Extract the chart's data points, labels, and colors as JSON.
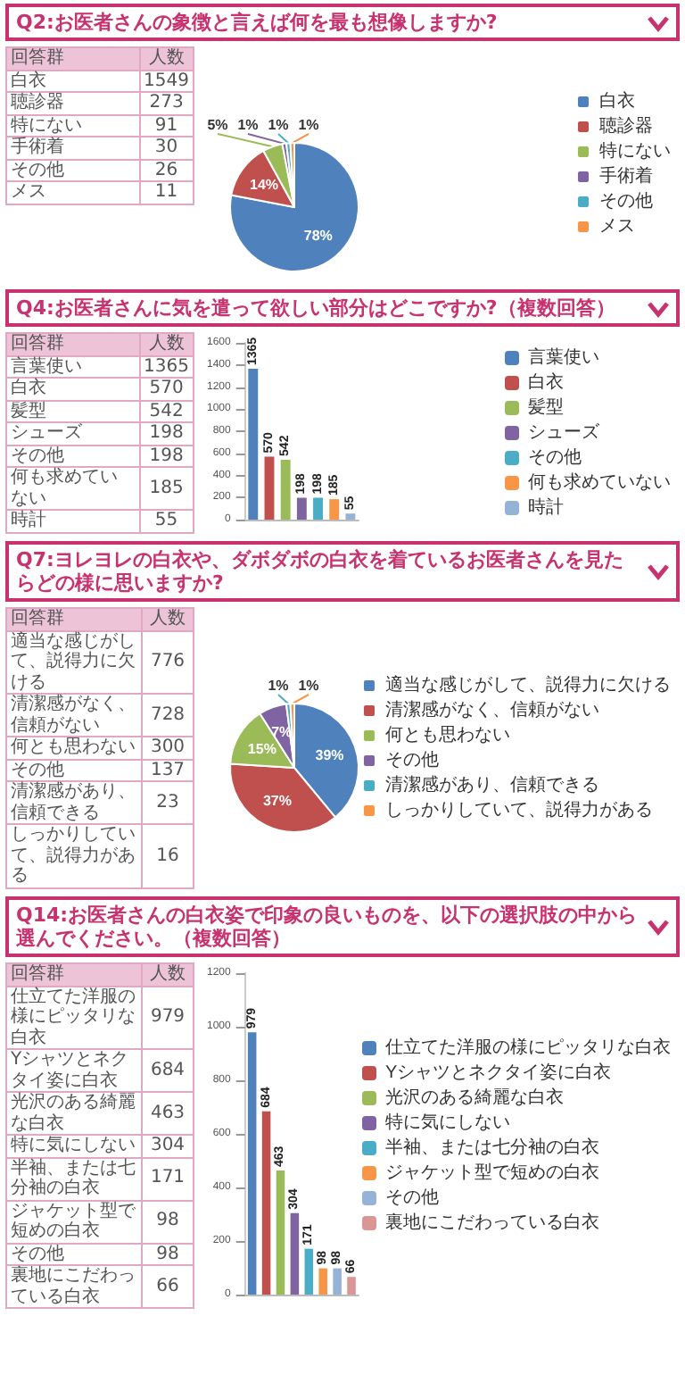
{
  "chart_data": [
    {
      "type": "other",
      "title": "Q2:お医者さんの象徴と言えば何を最も想像しますか?",
      "annotations": [
        "回答群",
        "人数"
      ],
      "categories": [
        "白衣",
        "聴診器",
        "特にない",
        "手術着",
        "その他",
        "メス"
      ],
      "values": [
        1549,
        273,
        91,
        30,
        26,
        11
      ],
      "data_labels": true
    },
    {
      "type": "pie",
      "categories": [
        "白衣",
        "聴診器",
        "特にない",
        "手術着",
        "その他",
        "メス"
      ],
      "values": [
        78,
        14,
        5,
        1,
        1,
        1
      ],
      "colors": [
        "#4f81bd",
        "#c0504d",
        "#9bbb59",
        "#8064a2",
        "#4bacc6",
        "#f79646"
      ],
      "value_labels": [
        "78%",
        "14%",
        "5%",
        "1%",
        "1%",
        "1%"
      ],
      "legend": "right"
    },
    {
      "type": "other",
      "title": "Q4:お医者さんに気を遣って欲しい部分はどこですか?（複数回答）",
      "annotations": [
        "回答群",
        "人数"
      ],
      "categories": [
        "言葉使い",
        "白衣",
        "髪型",
        "シューズ",
        "その他",
        "何も求めていない",
        "時計"
      ],
      "values": [
        1365,
        570,
        542,
        198,
        198,
        185,
        55
      ],
      "data_labels": true
    },
    {
      "type": "bar",
      "categories": [
        null,
        null,
        null,
        null,
        null,
        null,
        null
      ],
      "series": [
        {
          "name": "言葉使い",
          "color": "#4f81bd",
          "values": [
            1365,
            null,
            null,
            null,
            null,
            null,
            null
          ]
        },
        {
          "name": "白衣",
          "color": "#c0504d",
          "values": [
            null,
            570,
            null,
            null,
            null,
            null,
            null
          ]
        },
        {
          "name": "髪型",
          "color": "#9bbb59",
          "values": [
            null,
            null,
            542,
            null,
            null,
            null,
            null
          ]
        },
        {
          "name": "シューズ",
          "color": "#8064a2",
          "values": [
            null,
            null,
            null,
            198,
            null,
            null,
            null
          ]
        },
        {
          "name": "その他",
          "color": "#4bacc6",
          "values": [
            null,
            null,
            null,
            null,
            198,
            null,
            null
          ]
        },
        {
          "name": "何も求めていない",
          "color": "#f79646",
          "values": [
            null,
            null,
            null,
            null,
            null,
            185,
            null
          ]
        },
        {
          "name": "時計",
          "color": "#95b3d7",
          "values": [
            null,
            null,
            null,
            null,
            null,
            null,
            55
          ]
        }
      ],
      "ylim": [
        0,
        1600
      ],
      "yticks": [
        0,
        200,
        400,
        600,
        800,
        1000,
        1200,
        1400,
        1600
      ],
      "data_labels": true,
      "legend": "right"
    },
    {
      "type": "other",
      "title": "Q7:ヨレヨレの白衣や、ダボダボの白衣を着ているお医者さんを見たらどの様に思いますか?",
      "annotations": [
        "回答群",
        "人数"
      ],
      "categories": [
        "適当な感じがして、説得力に欠ける",
        "清潔感がなく、信頼がない",
        "何とも思わない",
        "その他",
        "清潔感があり、信頼できる",
        "しっかりしていて、説得力がある"
      ],
      "values": [
        776,
        728,
        300,
        137,
        23,
        16
      ],
      "data_labels": true
    },
    {
      "type": "pie",
      "categories": [
        "適当な感じがして、説得力に欠ける",
        "清潔感がなく、信頼がない",
        "何とも思わない",
        "その他",
        "清潔感があり、信頼できる",
        "しっかりしていて、説得力がある"
      ],
      "values": [
        39,
        37,
        15,
        7,
        1,
        1
      ],
      "colors": [
        "#4f81bd",
        "#c0504d",
        "#9bbb59",
        "#8064a2",
        "#4bacc6",
        "#f79646"
      ],
      "value_labels": [
        "39%",
        "37%",
        "15%",
        "7%",
        "1%",
        "1%"
      ],
      "legend": "right"
    },
    {
      "type": "other",
      "title": "Q14:お医者さんの白衣姿で印象の良いものを、以下の選択肢の中から選んでください。（複数回答）",
      "annotations": [
        "回答群",
        "人数"
      ],
      "categories": [
        "仕立てた洋服の様にピッタリな白衣",
        "Yシャツとネクタイ姿に白衣",
        "光沢のある綺麗な白衣",
        "特に気にしない",
        "半袖、または七分袖の白衣",
        "ジャケット型で短めの白衣",
        "その他",
        "裏地にこだわっている白衣"
      ],
      "values": [
        979,
        684,
        463,
        304,
        171,
        98,
        98,
        66
      ],
      "data_labels": true
    },
    {
      "type": "bar",
      "categories": [
        null,
        null,
        null,
        null,
        null,
        null,
        null,
        null
      ],
      "series": [
        {
          "name": "仕立てた洋服の様にピッタリな白衣",
          "color": "#4f81bd",
          "values": [
            979,
            null,
            null,
            null,
            null,
            null,
            null,
            null
          ]
        },
        {
          "name": "Yシャツとネクタイ姿に白衣",
          "color": "#c0504d",
          "values": [
            null,
            684,
            null,
            null,
            null,
            null,
            null,
            null
          ]
        },
        {
          "name": "光沢のある綺麗な白衣",
          "color": "#9bbb59",
          "values": [
            null,
            null,
            463,
            null,
            null,
            null,
            null,
            null
          ]
        },
        {
          "name": "特に気にしない",
          "color": "#8064a2",
          "values": [
            null,
            null,
            null,
            304,
            null,
            null,
            null,
            null
          ]
        },
        {
          "name": "半袖、または七分袖の白衣",
          "color": "#4bacc6",
          "values": [
            null,
            null,
            null,
            null,
            171,
            null,
            null,
            null
          ]
        },
        {
          "name": "ジャケット型で短めの白衣",
          "color": "#f79646",
          "values": [
            null,
            null,
            null,
            null,
            null,
            98,
            null,
            null
          ]
        },
        {
          "name": "その他",
          "color": "#95b3d7",
          "values": [
            null,
            null,
            null,
            null,
            null,
            null,
            98,
            null
          ]
        },
        {
          "name": "裏地にこだわっている白衣",
          "color": "#d99694",
          "values": [
            null,
            null,
            null,
            null,
            null,
            null,
            null,
            66
          ]
        }
      ],
      "ylim": [
        0,
        1200
      ],
      "yticks": [
        0,
        200,
        400,
        600,
        800,
        1000,
        1200
      ],
      "data_labels": true,
      "legend": "right"
    }
  ]
}
